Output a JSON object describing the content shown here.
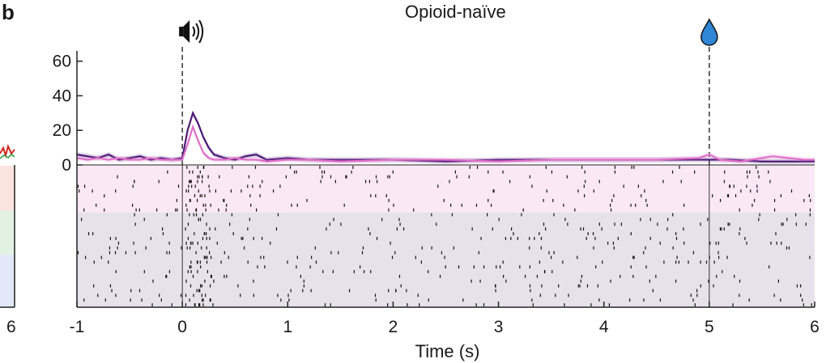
{
  "panel_label": "b",
  "left_panel_fragment": {
    "tick_label": "6"
  },
  "chart_data": {
    "type": "line",
    "title": "Opioid-naïve",
    "xlabel": "Time (s)",
    "ylabel": "",
    "xlim": [
      -1,
      6
    ],
    "ylim": [
      0,
      65
    ],
    "xticks": [
      "-1",
      "0",
      "1",
      "2",
      "3",
      "4",
      "5",
      "6"
    ],
    "yticks": [
      "0",
      "20",
      "40",
      "60"
    ],
    "events": [
      {
        "name": "speaker-icon",
        "time": 0
      },
      {
        "name": "water-drop-icon",
        "time": 5
      }
    ],
    "series": [
      {
        "color": "#4b1a78",
        "x": [
          -1.0,
          -0.9,
          -0.8,
          -0.7,
          -0.6,
          -0.5,
          -0.4,
          -0.3,
          -0.2,
          -0.1,
          0.0,
          0.05,
          0.1,
          0.15,
          0.2,
          0.25,
          0.3,
          0.4,
          0.5,
          0.6,
          0.7,
          0.8,
          1.0,
          1.2,
          1.5,
          2.0,
          2.5,
          3.0,
          3.5,
          4.0,
          4.5,
          4.9,
          5.0,
          5.2,
          5.5,
          6.0
        ],
        "values": [
          6,
          5,
          4,
          6,
          3,
          4,
          5,
          3,
          4,
          3,
          4,
          20,
          30,
          24,
          16,
          10,
          6,
          4,
          3,
          5,
          6,
          3,
          4,
          3,
          3,
          3,
          2,
          3,
          3,
          3,
          3,
          3,
          3,
          3,
          2,
          2
        ]
      },
      {
        "color": "#e070c8",
        "x": [
          -1.0,
          -0.9,
          -0.8,
          -0.7,
          -0.6,
          -0.5,
          -0.4,
          -0.3,
          -0.2,
          -0.1,
          0.0,
          0.05,
          0.1,
          0.15,
          0.2,
          0.25,
          0.3,
          0.4,
          0.5,
          0.6,
          0.7,
          0.8,
          1.0,
          1.2,
          1.5,
          2.0,
          2.5,
          3.0,
          3.5,
          4.0,
          4.5,
          4.9,
          5.0,
          5.1,
          5.3,
          5.6,
          5.9,
          6.0
        ],
        "values": [
          4,
          3,
          4,
          3,
          4,
          3,
          3,
          4,
          3,
          3,
          3,
          12,
          22,
          14,
          7,
          4,
          3,
          3,
          4,
          3,
          3,
          2,
          3,
          3,
          2,
          3,
          3,
          2,
          3,
          3,
          3,
          4,
          6,
          3,
          2,
          5,
          3,
          3
        ]
      }
    ],
    "raster": {
      "trial_groups": [
        {
          "trials": 10,
          "color": "#fbe8f6"
        },
        {
          "trials": 20,
          "color": "#e6e2ec"
        }
      ]
    }
  }
}
